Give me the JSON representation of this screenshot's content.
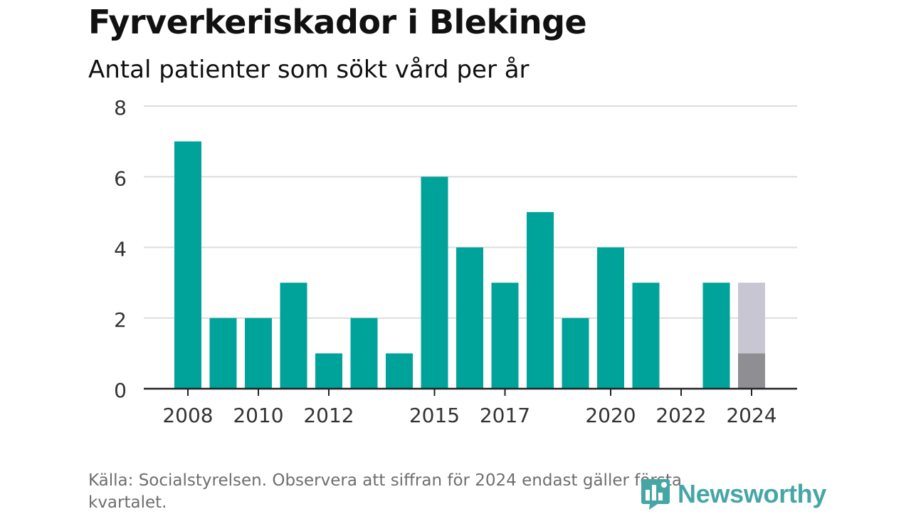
{
  "title": "Fyrverkeriskador i Blekinge",
  "subtitle": "Antal patienter som sökt vård per år",
  "footer": "Källa: Socialstyrelsen. Observera att siffran för 2024 endast gäller första kvartalet.",
  "brand": {
    "name": "Newsworthy",
    "icon": "newsworthy-logo-icon",
    "color": "#45a6a6"
  },
  "colors": {
    "bar": "#00a39a",
    "partial_base": "#8e8e93",
    "partial_extra": "#c8c6d2",
    "grid": "#dddddd",
    "axis": "#222222"
  },
  "chart_data": {
    "type": "bar",
    "title": "Fyrverkeriskador i Blekinge",
    "subtitle": "Antal patienter som sökt vård per år",
    "xlabel": "",
    "ylabel": "",
    "categories": [
      "2008",
      "2009",
      "2010",
      "2011",
      "2012",
      "2013",
      "2014",
      "2015",
      "2016",
      "2017",
      "2018",
      "2019",
      "2020",
      "2021",
      "2022",
      "2023",
      "2024"
    ],
    "values": [
      7,
      2,
      2,
      3,
      1,
      2,
      1,
      6,
      4,
      3,
      5,
      2,
      4,
      3,
      0,
      3,
      1
    ],
    "partial_year": {
      "category": "2024",
      "value": 1,
      "shaded_total": 3
    },
    "x_tick_labels": [
      "2008",
      "2010",
      "2012",
      "2015",
      "2017",
      "2020",
      "2022",
      "2024"
    ],
    "y_ticks": [
      0,
      2,
      4,
      6,
      8
    ],
    "ylim": [
      0,
      8
    ],
    "grid": true,
    "legend": "none"
  }
}
